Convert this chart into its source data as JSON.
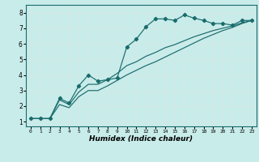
{
  "xlabel": "Humidex (Indice chaleur)",
  "bg_color": "#c8ecea",
  "grid_color": "#b0d8d5",
  "line_color": "#1a6b6b",
  "xlim": [
    -0.5,
    23.5
  ],
  "ylim": [
    0.7,
    8.5
  ],
  "xticks": [
    0,
    1,
    2,
    3,
    4,
    5,
    6,
    7,
    8,
    9,
    10,
    11,
    12,
    13,
    14,
    15,
    16,
    17,
    18,
    19,
    20,
    21,
    22,
    23
  ],
  "yticks": [
    1,
    2,
    3,
    4,
    5,
    6,
    7,
    8
  ],
  "line1_x": [
    0,
    1,
    2,
    3,
    4,
    5,
    6,
    7,
    8,
    9,
    10,
    11,
    12,
    13,
    14,
    15,
    16,
    17,
    18,
    19,
    20,
    21,
    22,
    23
  ],
  "line1_y": [
    1.2,
    1.2,
    1.2,
    2.5,
    2.2,
    3.3,
    4.0,
    3.6,
    3.7,
    3.8,
    5.8,
    6.3,
    7.1,
    7.6,
    7.6,
    7.5,
    7.85,
    7.65,
    7.5,
    7.3,
    7.3,
    7.2,
    7.5,
    7.5
  ],
  "line2_x": [
    0,
    1,
    2,
    3,
    4,
    5,
    6,
    7,
    8,
    9,
    10,
    11,
    12,
    13,
    14,
    15,
    16,
    17,
    18,
    19,
    20,
    21,
    22,
    23
  ],
  "line2_y": [
    1.2,
    1.2,
    1.2,
    2.4,
    2.1,
    2.9,
    3.4,
    3.4,
    3.7,
    4.1,
    4.6,
    4.85,
    5.2,
    5.45,
    5.75,
    5.95,
    6.2,
    6.45,
    6.65,
    6.85,
    7.0,
    7.15,
    7.35,
    7.5
  ],
  "line3_x": [
    0,
    1,
    2,
    3,
    4,
    5,
    6,
    7,
    8,
    9,
    10,
    11,
    12,
    13,
    14,
    15,
    16,
    17,
    18,
    19,
    20,
    21,
    22,
    23
  ],
  "line3_y": [
    1.2,
    1.2,
    1.2,
    2.1,
    1.9,
    2.6,
    3.0,
    3.0,
    3.3,
    3.65,
    4.0,
    4.3,
    4.6,
    4.85,
    5.15,
    5.45,
    5.75,
    6.05,
    6.35,
    6.6,
    6.85,
    7.05,
    7.3,
    7.5
  ]
}
